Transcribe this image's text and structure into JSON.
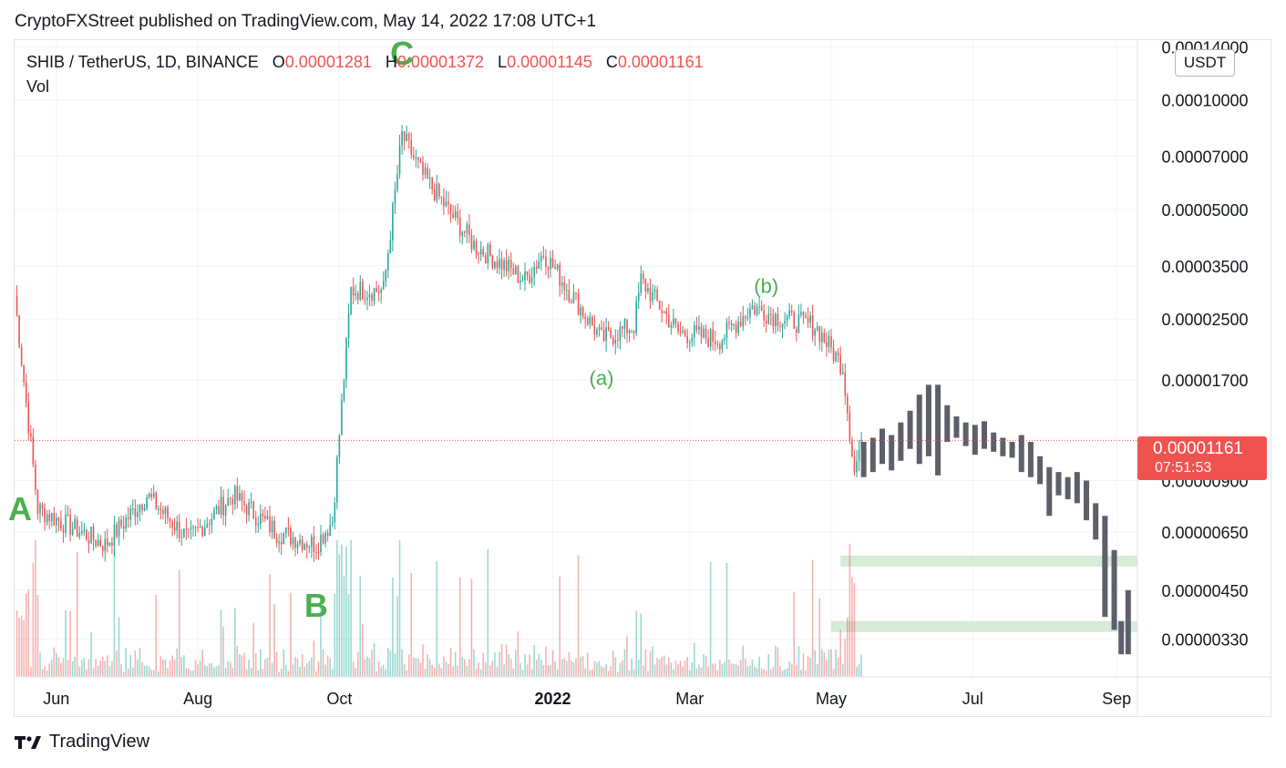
{
  "publisher_line": "CryptoFXStreet published on TradingView.com, May 14, 2022 17:08 UTC+1",
  "legend": {
    "symbol": "SHIB / TetherUS, 1D, BINANCE",
    "o_label": "O",
    "o_value": "0.00001281",
    "h_label": "H",
    "h_value": "0.00001372",
    "l_label": "L",
    "l_value": "0.00001145",
    "c_label": "C",
    "c_value": "0.00001161",
    "vol_label": "Vol"
  },
  "unit_label": "USDT",
  "current_price": {
    "value": "0.00001161",
    "countdown": "07:51:53"
  },
  "footer_brand": "TradingView",
  "colors": {
    "up": "#26a69a",
    "down": "#ef5350",
    "wave": "#4caf50",
    "projection": "#5d606b",
    "zone": "#c8e6c9"
  },
  "chart_data": {
    "type": "candlestick",
    "symbol": "SHIB / TetherUS",
    "interval": "1D",
    "y_scale": "log",
    "y_ticks": [
      "0.00014000",
      "0.00010000",
      "0.00007000",
      "0.00005000",
      "0.00003500",
      "0.00002500",
      "0.00001700",
      "0.00000900",
      "0.00000650",
      "0.00000450",
      "0.00000330"
    ],
    "x_ticks": [
      "Jun",
      "Aug",
      "Oct",
      "2022",
      "Mar",
      "May",
      "Jul",
      "Sep"
    ],
    "anchor_points": [
      {
        "date": "2021-05-14",
        "price": 2.9e-05
      },
      {
        "date": "2021-05-24",
        "price": 7.5e-06
      },
      {
        "date": "2021-06-22",
        "price": 6e-06
      },
      {
        "date": "2021-07-10",
        "price": 8.2e-06
      },
      {
        "date": "2021-07-28",
        "price": 6.2e-06
      },
      {
        "date": "2021-08-16",
        "price": 8.2e-06
      },
      {
        "date": "2021-09-04",
        "price": 6.5e-06
      },
      {
        "date": "2021-09-21",
        "price": 6e-06
      },
      {
        "date": "2021-09-28",
        "price": 7e-06
      },
      {
        "date": "2021-10-06",
        "price": 3e-05
      },
      {
        "date": "2021-10-20",
        "price": 3e-05
      },
      {
        "date": "2021-10-28",
        "price": 8e-05
      },
      {
        "date": "2021-11-06",
        "price": 6.2e-05
      },
      {
        "date": "2021-11-28",
        "price": 4e-05
      },
      {
        "date": "2021-12-20",
        "price": 3.2e-05
      },
      {
        "date": "2021-12-28",
        "price": 3.8e-05
      },
      {
        "date": "2022-01-22",
        "price": 2.2e-05
      },
      {
        "date": "2022-02-05",
        "price": 2.4e-05
      },
      {
        "date": "2022-02-08",
        "price": 3.2e-05
      },
      {
        "date": "2022-02-24",
        "price": 2.3e-05
      },
      {
        "date": "2022-03-14",
        "price": 2.2e-05
      },
      {
        "date": "2022-03-28",
        "price": 2.7e-05
      },
      {
        "date": "2022-04-10",
        "price": 2.5e-05
      },
      {
        "date": "2022-04-24",
        "price": 2.4e-05
      },
      {
        "date": "2022-05-06",
        "price": 1.85e-05
      },
      {
        "date": "2022-05-11",
        "price": 9.5e-06
      },
      {
        "date": "2022-05-14",
        "price": 1.16e-05
      }
    ],
    "projection_bars": [
      {
        "date": "2022-05-15",
        "high": 1.15e-05,
        "low": 9.2e-06
      },
      {
        "date": "2022-05-19",
        "high": 1.18e-05,
        "low": 9.5e-06
      },
      {
        "date": "2022-05-23",
        "high": 1.25e-05,
        "low": 1e-05
      },
      {
        "date": "2022-05-27",
        "high": 1.2e-05,
        "low": 9.6e-06
      },
      {
        "date": "2022-05-31",
        "high": 1.3e-05,
        "low": 1.02e-05
      },
      {
        "date": "2022-06-04",
        "high": 1.4e-05,
        "low": 1.1e-05
      },
      {
        "date": "2022-06-08",
        "high": 1.55e-05,
        "low": 1e-05
      },
      {
        "date": "2022-06-12",
        "high": 1.65e-05,
        "low": 1.05e-05
      },
      {
        "date": "2022-06-16",
        "high": 1.65e-05,
        "low": 9.3e-06
      },
      {
        "date": "2022-06-20",
        "high": 1.45e-05,
        "low": 1.15e-05
      },
      {
        "date": "2022-06-24",
        "high": 1.35e-05,
        "low": 1.18e-05
      },
      {
        "date": "2022-06-28",
        "high": 1.3e-05,
        "low": 1.12e-05
      },
      {
        "date": "2022-07-02",
        "high": 1.28e-05,
        "low": 1.06e-05
      },
      {
        "date": "2022-07-06",
        "high": 1.31e-05,
        "low": 1.1e-05
      },
      {
        "date": "2022-07-10",
        "high": 1.22e-05,
        "low": 1.08e-05
      },
      {
        "date": "2022-07-14",
        "high": 1.18e-05,
        "low": 1.05e-05
      },
      {
        "date": "2022-07-18",
        "high": 1.15e-05,
        "low": 1.04e-05
      },
      {
        "date": "2022-07-22",
        "high": 1.2e-05,
        "low": 9.5e-06
      },
      {
        "date": "2022-07-26",
        "high": 1.15e-05,
        "low": 9.2e-06
      },
      {
        "date": "2022-07-30",
        "high": 1.05e-05,
        "low": 8.8e-06
      },
      {
        "date": "2022-08-03",
        "high": 9.8e-06,
        "low": 7.2e-06
      },
      {
        "date": "2022-08-07",
        "high": 9.5e-06,
        "low": 8.2e-06
      },
      {
        "date": "2022-08-11",
        "high": 9.2e-06,
        "low": 8e-06
      },
      {
        "date": "2022-08-15",
        "high": 9.5e-06,
        "low": 7.8e-06
      },
      {
        "date": "2022-08-19",
        "high": 9e-06,
        "low": 7e-06
      },
      {
        "date": "2022-08-23",
        "high": 7.8e-06,
        "low": 6.2e-06
      },
      {
        "date": "2022-08-27",
        "high": 7.2e-06,
        "low": 3.8e-06
      },
      {
        "date": "2022-08-31",
        "high": 5.8e-06,
        "low": 3.5e-06
      },
      {
        "date": "2022-09-03",
        "high": 3.7e-06,
        "low": 3e-06
      },
      {
        "date": "2022-09-06",
        "high": 4.5e-06,
        "low": 3e-06
      }
    ],
    "support_zones": [
      {
        "from": "2022-05-05",
        "low": 5.4e-06,
        "high": 5.6e-06
      },
      {
        "from": "2022-05-01",
        "low": 3.5e-06,
        "high": 3.7e-06
      }
    ],
    "current_price": 1.161e-05,
    "wave_labels": [
      {
        "text": "A",
        "date": "2021-05-10",
        "price": 7e-06
      },
      {
        "text": "B",
        "date": "2021-09-21",
        "price": 3.8e-06
      },
      {
        "text": "C",
        "date": "2021-10-28",
        "price": 0.000125
      },
      {
        "text": "(a)",
        "date": "2022-01-22",
        "price": 1.65e-05
      },
      {
        "text": "(b)",
        "date": "2022-04-03",
        "price": 2.95e-05
      }
    ],
    "volume_scale": "relative",
    "grid": true
  }
}
